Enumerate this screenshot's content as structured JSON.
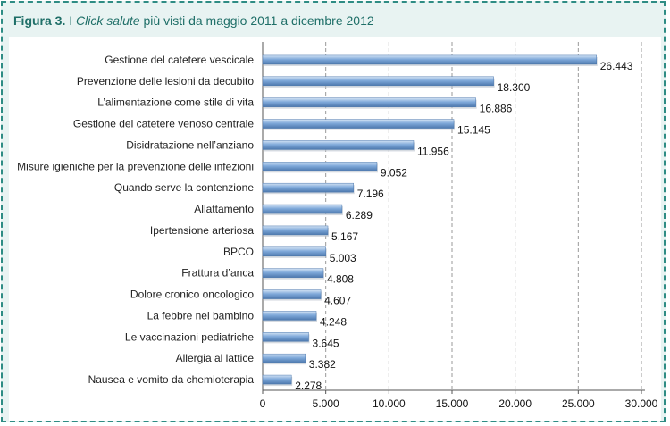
{
  "figure": {
    "label": "Figura 3.",
    "title_prefix": "I",
    "title_em": "Click salute",
    "title_rest": "più visti da maggio 2011 a dicembre 2012"
  },
  "chart_data": {
    "type": "bar",
    "orientation": "horizontal",
    "title": "I Click salute più visti da maggio 2011 a dicembre 2012",
    "categories": [
      "Gestione del catetere vescicale",
      "Prevenzione delle lesioni da decubito",
      "L’alimentazione come stile di vita",
      "Gestione del catetere venoso centrale",
      "Disidratazione nell’anziano",
      "Misure igieniche per la prevenzione delle infezioni",
      "Quando serve la contenzione",
      "Allattamento",
      "Ipertensione arteriosa",
      "BPCO",
      "Frattura d’anca",
      "Dolore cronico oncologico",
      "La febbre nel bambino",
      "Le vaccinazioni pediatriche",
      "Allergia al lattice",
      "Nausea e vomito da chemioterapia"
    ],
    "values": [
      26443,
      18300,
      16886,
      15145,
      11956,
      9052,
      7196,
      6289,
      5167,
      5003,
      4808,
      4607,
      4248,
      3645,
      3382,
      2278
    ],
    "value_labels": [
      "26.443",
      "18.300",
      "16.886",
      "15.145",
      "11.956",
      "9.052",
      "7.196",
      "6.289",
      "5.167",
      "5.003",
      "4.808",
      "4.607",
      "4.248",
      "3.645",
      "3.382",
      "2.278"
    ],
    "xlim": [
      0,
      30000
    ],
    "xticks": [
      0,
      5000,
      10000,
      15000,
      20000,
      25000,
      30000
    ],
    "xtick_labels": [
      "0",
      "5.000",
      "10.000",
      "15.000",
      "20.000",
      "25.000",
      "30.000"
    ],
    "xlabel": "",
    "ylabel": "",
    "grid": "vertical-dashed",
    "bar_color": "#7fa9da",
    "bar_highlight": "#d3e3f4",
    "bar_shadow": "#4d78ad"
  }
}
